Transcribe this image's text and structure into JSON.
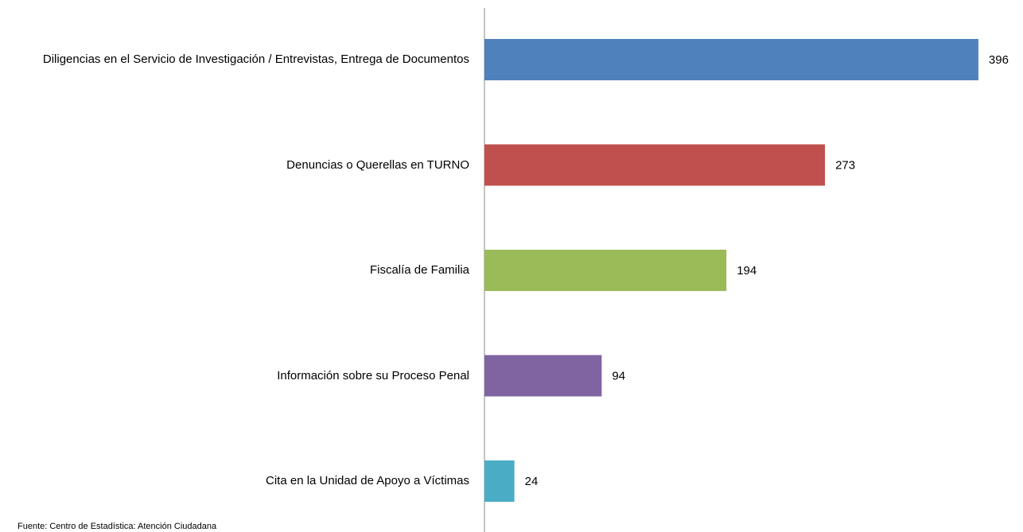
{
  "chart_data": {
    "type": "bar",
    "orientation": "horizontal",
    "categories": [
      "Diligencias en el Servicio de Investigación / Entrevistas, Entrega de Documentos",
      "Denuncias o Querellas en TURNO",
      "Fiscalía de Familia",
      "Información sobre su Proceso Penal",
      "Cita en la Unidad de Apoyo a Víctimas"
    ],
    "values": [
      396,
      273,
      194,
      94,
      24
    ],
    "colors": [
      "#4f81bd",
      "#c0504d",
      "#9bbb59",
      "#8064a2",
      "#4bacc6"
    ],
    "source": "Fuente: Centro de Estadística: Atención Ciudadana"
  }
}
